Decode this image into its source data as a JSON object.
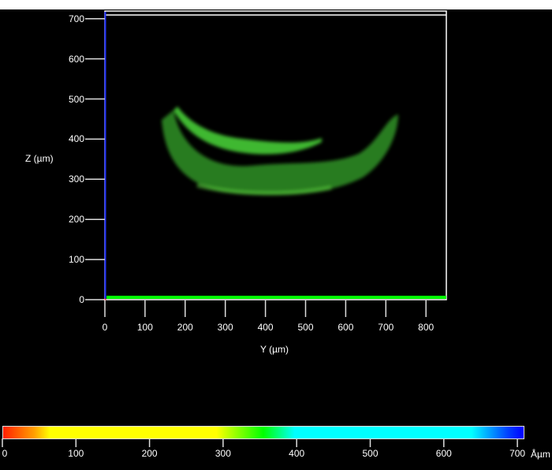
{
  "plot": {
    "y_axis_label": "Y (µm)",
    "z_axis_label": "Z (µm)",
    "y_ticks": [
      "0",
      "100",
      "200",
      "300",
      "400",
      "500",
      "600",
      "700",
      "800"
    ],
    "z_ticks": [
      "0",
      "100",
      "200",
      "300",
      "400",
      "500",
      "600",
      "700"
    ],
    "y_range": [
      0,
      850
    ],
    "z_range": [
      0,
      710
    ],
    "specimen_color": "#3fbf2a"
  },
  "colorbar": {
    "ticks": [
      "0",
      "100",
      "200",
      "300",
      "400",
      "500",
      "600",
      "700"
    ],
    "unit": "Åµm",
    "range": [
      0,
      710
    ]
  }
}
